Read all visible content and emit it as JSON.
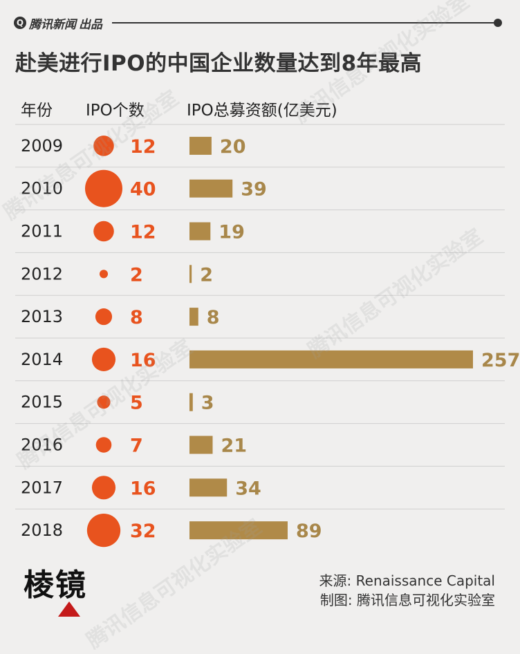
{
  "brand": {
    "logo_glyph": "Q",
    "name": "腾讯新闻",
    "tag": "出品"
  },
  "title": "赴美进行IPO的中国企业数量达到8年最高",
  "headers": {
    "year": "年份",
    "ipo_count": "IPO个数",
    "ipo_amount": "IPO总募资额(亿美元)"
  },
  "footer": {
    "logo_text": "棱镜",
    "source": "来源: Renaissance Capital",
    "maker": "制图: 腾讯信息可视化实验室"
  },
  "watermark": "腾讯信息可视化实验室",
  "colors": {
    "circle": "#e8531e",
    "bar": "#b08a48",
    "count_text": "#e8531e",
    "amount_text": "#a8874a",
    "divider": "#cfcfcf"
  },
  "chart_data": {
    "type": "table",
    "categories": [
      "2009",
      "2010",
      "2011",
      "2012",
      "2013",
      "2014",
      "2015",
      "2016",
      "2017",
      "2018"
    ],
    "series": [
      {
        "name": "IPO个数",
        "values": [
          12,
          40,
          12,
          2,
          8,
          16,
          5,
          7,
          16,
          32
        ]
      },
      {
        "name": "IPO总募资额(亿美元)",
        "values": [
          20,
          39,
          19,
          2,
          8,
          257,
          3,
          21,
          34,
          89
        ]
      }
    ]
  }
}
